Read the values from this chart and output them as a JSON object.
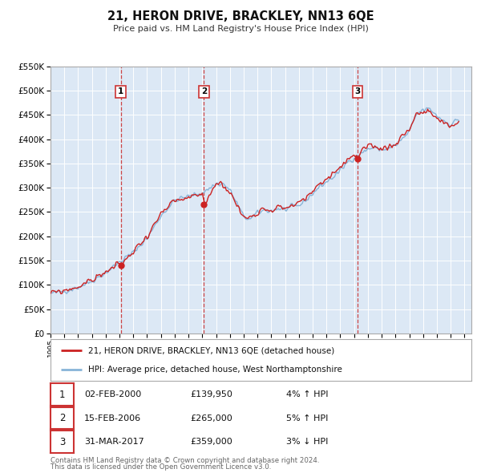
{
  "title": "21, HERON DRIVE, BRACKLEY, NN13 6QE",
  "subtitle": "Price paid vs. HM Land Registry's House Price Index (HPI)",
  "outer_bg": "#ffffff",
  "plot_bg": "#dce8f5",
  "grid_color": "#ffffff",
  "ylim": [
    0,
    550000
  ],
  "yticks": [
    0,
    50000,
    100000,
    150000,
    200000,
    250000,
    300000,
    350000,
    400000,
    450000,
    500000,
    550000
  ],
  "ytick_labels": [
    "£0",
    "£50K",
    "£100K",
    "£150K",
    "£200K",
    "£250K",
    "£300K",
    "£350K",
    "£400K",
    "£450K",
    "£500K",
    "£550K"
  ],
  "xmin": 1995.0,
  "xmax": 2025.5,
  "xticks": [
    1995,
    1996,
    1997,
    1998,
    1999,
    2000,
    2001,
    2002,
    2003,
    2004,
    2005,
    2006,
    2007,
    2008,
    2009,
    2010,
    2011,
    2012,
    2013,
    2014,
    2015,
    2016,
    2017,
    2018,
    2019,
    2020,
    2021,
    2022,
    2023,
    2024,
    2025
  ],
  "hpi_color": "#88b4d8",
  "price_color": "#cc2222",
  "vline_color": "#cc3333",
  "sale_points": [
    {
      "year": 2000.09,
      "value": 139950,
      "label": "1"
    },
    {
      "year": 2006.12,
      "value": 265000,
      "label": "2"
    },
    {
      "year": 2017.25,
      "value": 359000,
      "label": "3"
    }
  ],
  "legend_label_price": "21, HERON DRIVE, BRACKLEY, NN13 6QE (detached house)",
  "legend_label_hpi": "HPI: Average price, detached house, West Northamptonshire",
  "table_rows": [
    {
      "num": "1",
      "date": "02-FEB-2000",
      "price": "£139,950",
      "hpi": "4% ↑ HPI"
    },
    {
      "num": "2",
      "date": "15-FEB-2006",
      "price": "£265,000",
      "hpi": "5% ↑ HPI"
    },
    {
      "num": "3",
      "date": "31-MAR-2017",
      "price": "£359,000",
      "hpi": "3% ↓ HPI"
    }
  ],
  "footnote1": "Contains HM Land Registry data © Crown copyright and database right 2024.",
  "footnote2": "This data is licensed under the Open Government Licence v3.0."
}
